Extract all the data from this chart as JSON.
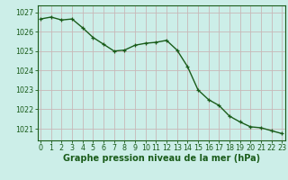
{
  "x": [
    0,
    1,
    2,
    3,
    4,
    5,
    6,
    7,
    8,
    9,
    10,
    11,
    12,
    13,
    14,
    15,
    16,
    17,
    18,
    19,
    20,
    21,
    22,
    23
  ],
  "y": [
    1026.65,
    1026.75,
    1026.6,
    1026.65,
    1026.2,
    1025.7,
    1025.35,
    1025.0,
    1025.05,
    1025.3,
    1025.4,
    1025.45,
    1025.55,
    1025.05,
    1024.2,
    1023.0,
    1022.5,
    1022.2,
    1021.65,
    1021.35,
    1021.1,
    1021.05,
    1020.9,
    1020.75
  ],
  "line_color": "#1a5c1a",
  "marker_color": "#1a5c1a",
  "bg_color": "#cceee8",
  "grid_color": "#c8b8b8",
  "title": "Graphe pression niveau de la mer (hPa)",
  "ylim_min": 1020.4,
  "ylim_max": 1027.35,
  "yticks": [
    1021,
    1022,
    1023,
    1024,
    1025,
    1026,
    1027
  ],
  "xtick_labels": [
    "0",
    "1",
    "2",
    "3",
    "4",
    "5",
    "6",
    "7",
    "8",
    "9",
    "10",
    "11",
    "12",
    "13",
    "14",
    "15",
    "16",
    "17",
    "18",
    "19",
    "20",
    "21",
    "22",
    "23"
  ],
  "title_color": "#1a5c1a",
  "title_fontsize": 7.0,
  "tick_fontsize": 5.8,
  "line_width": 1.0,
  "marker_size": 2.5,
  "marker_style": "+"
}
